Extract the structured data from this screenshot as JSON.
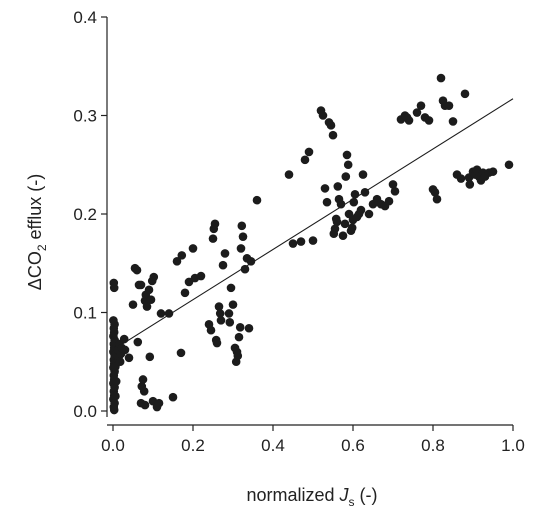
{
  "chart_data": {
    "type": "scatter",
    "title": "",
    "xlabel_parts": {
      "prefix": "normalized ",
      "italic": "J",
      "subscript": "s",
      "suffix": " (-)"
    },
    "ylabel_parts": {
      "prefix": "ΔCO",
      "subscript": "2",
      "suffix": " efflux (-)"
    },
    "xlim": [
      0.0,
      1.0
    ],
    "ylim": [
      0.0,
      0.4
    ],
    "xticks": [
      0.0,
      0.2,
      0.4,
      0.6,
      0.8,
      1.0
    ],
    "xtick_labels": [
      "0.0",
      "0.2",
      "0.4",
      "0.6",
      "0.8",
      "1.0"
    ],
    "yticks": [
      0.0,
      0.1,
      0.2,
      0.3,
      0.4
    ],
    "ytick_labels": [
      "0.0",
      "0.1",
      "0.2",
      "0.3",
      "0.4"
    ],
    "grid": false,
    "legend": "none",
    "marker_color": "#1c1c1c",
    "trendline": {
      "x": [
        0.0,
        1.0
      ],
      "y": [
        0.062,
        0.317
      ]
    },
    "points": [
      [
        0.002,
        0.13
      ],
      [
        0.003,
        0.125
      ],
      [
        0.001,
        0.092
      ],
      [
        0.004,
        0.088
      ],
      [
        0.002,
        0.084
      ],
      [
        0.003,
        0.08
      ],
      [
        0.001,
        0.076
      ],
      [
        0.004,
        0.072
      ],
      [
        0.002,
        0.068
      ],
      [
        0.003,
        0.064
      ],
      [
        0.001,
        0.06
      ],
      [
        0.004,
        0.056
      ],
      [
        0.002,
        0.052
      ],
      [
        0.003,
        0.048
      ],
      [
        0.001,
        0.044
      ],
      [
        0.004,
        0.04
      ],
      [
        0.002,
        0.036
      ],
      [
        0.003,
        0.032
      ],
      [
        0.001,
        0.028
      ],
      [
        0.004,
        0.024
      ],
      [
        0.002,
        0.02
      ],
      [
        0.003,
        0.016
      ],
      [
        0.001,
        0.012
      ],
      [
        0.004,
        0.008
      ],
      [
        0.002,
        0.004
      ],
      [
        0.003,
        0.001
      ],
      [
        0.006,
        0.07
      ],
      [
        0.007,
        0.058
      ],
      [
        0.006,
        0.045
      ],
      [
        0.008,
        0.03
      ],
      [
        0.006,
        0.015
      ],
      [
        0.012,
        0.062
      ],
      [
        0.014,
        0.054
      ],
      [
        0.016,
        0.068
      ],
      [
        0.02,
        0.058
      ],
      [
        0.018,
        0.05
      ],
      [
        0.022,
        0.064
      ],
      [
        0.028,
        0.073
      ],
      [
        0.03,
        0.062
      ],
      [
        0.04,
        0.054
      ],
      [
        0.05,
        0.108
      ],
      [
        0.055,
        0.145
      ],
      [
        0.06,
        0.143
      ],
      [
        0.062,
        0.07
      ],
      [
        0.065,
        0.128
      ],
      [
        0.07,
        0.128
      ],
      [
        0.072,
        0.025
      ],
      [
        0.075,
        0.032
      ],
      [
        0.078,
        0.02
      ],
      [
        0.08,
        0.112
      ],
      [
        0.082,
        0.118
      ],
      [
        0.085,
        0.106
      ],
      [
        0.09,
        0.123
      ],
      [
        0.092,
        0.055
      ],
      [
        0.095,
        0.113
      ],
      [
        0.098,
        0.132
      ],
      [
        0.102,
        0.136
      ],
      [
        0.07,
        0.008
      ],
      [
        0.08,
        0.006
      ],
      [
        0.1,
        0.01
      ],
      [
        0.11,
        0.004
      ],
      [
        0.115,
        0.008
      ],
      [
        0.12,
        0.099
      ],
      [
        0.14,
        0.099
      ],
      [
        0.15,
        0.014
      ],
      [
        0.16,
        0.152
      ],
      [
        0.17,
        0.059
      ],
      [
        0.172,
        0.158
      ],
      [
        0.18,
        0.12
      ],
      [
        0.19,
        0.131
      ],
      [
        0.2,
        0.165
      ],
      [
        0.205,
        0.135
      ],
      [
        0.22,
        0.137
      ],
      [
        0.24,
        0.088
      ],
      [
        0.245,
        0.082
      ],
      [
        0.25,
        0.175
      ],
      [
        0.252,
        0.185
      ],
      [
        0.255,
        0.19
      ],
      [
        0.258,
        0.072
      ],
      [
        0.26,
        0.069
      ],
      [
        0.265,
        0.106
      ],
      [
        0.268,
        0.099
      ],
      [
        0.27,
        0.092
      ],
      [
        0.275,
        0.148
      ],
      [
        0.28,
        0.16
      ],
      [
        0.29,
        0.099
      ],
      [
        0.292,
        0.09
      ],
      [
        0.295,
        0.125
      ],
      [
        0.3,
        0.108
      ],
      [
        0.305,
        0.064
      ],
      [
        0.308,
        0.05
      ],
      [
        0.31,
        0.06
      ],
      [
        0.312,
        0.056
      ],
      [
        0.315,
        0.075
      ],
      [
        0.318,
        0.085
      ],
      [
        0.32,
        0.165
      ],
      [
        0.322,
        0.188
      ],
      [
        0.325,
        0.177
      ],
      [
        0.33,
        0.144
      ],
      [
        0.335,
        0.155
      ],
      [
        0.34,
        0.084
      ],
      [
        0.345,
        0.152
      ],
      [
        0.36,
        0.214
      ],
      [
        0.44,
        0.24
      ],
      [
        0.45,
        0.17
      ],
      [
        0.47,
        0.172
      ],
      [
        0.48,
        0.255
      ],
      [
        0.49,
        0.263
      ],
      [
        0.5,
        0.173
      ],
      [
        0.52,
        0.305
      ],
      [
        0.525,
        0.3
      ],
      [
        0.53,
        0.226
      ],
      [
        0.535,
        0.212
      ],
      [
        0.54,
        0.293
      ],
      [
        0.545,
        0.29
      ],
      [
        0.55,
        0.28
      ],
      [
        0.552,
        0.18
      ],
      [
        0.555,
        0.185
      ],
      [
        0.558,
        0.195
      ],
      [
        0.56,
        0.192
      ],
      [
        0.562,
        0.228
      ],
      [
        0.565,
        0.215
      ],
      [
        0.57,
        0.21
      ],
      [
        0.575,
        0.178
      ],
      [
        0.58,
        0.19
      ],
      [
        0.582,
        0.238
      ],
      [
        0.585,
        0.26
      ],
      [
        0.588,
        0.25
      ],
      [
        0.59,
        0.2
      ],
      [
        0.595,
        0.183
      ],
      [
        0.598,
        0.186
      ],
      [
        0.6,
        0.194
      ],
      [
        0.602,
        0.212
      ],
      [
        0.605,
        0.22
      ],
      [
        0.61,
        0.197
      ],
      [
        0.615,
        0.2
      ],
      [
        0.62,
        0.204
      ],
      [
        0.625,
        0.24
      ],
      [
        0.63,
        0.222
      ],
      [
        0.64,
        0.2
      ],
      [
        0.65,
        0.21
      ],
      [
        0.66,
        0.215
      ],
      [
        0.67,
        0.21
      ],
      [
        0.68,
        0.208
      ],
      [
        0.69,
        0.213
      ],
      [
        0.7,
        0.23
      ],
      [
        0.705,
        0.223
      ],
      [
        0.72,
        0.296
      ],
      [
        0.73,
        0.3
      ],
      [
        0.735,
        0.298
      ],
      [
        0.74,
        0.295
      ],
      [
        0.76,
        0.303
      ],
      [
        0.77,
        0.31
      ],
      [
        0.78,
        0.298
      ],
      [
        0.79,
        0.295
      ],
      [
        0.8,
        0.225
      ],
      [
        0.805,
        0.222
      ],
      [
        0.81,
        0.215
      ],
      [
        0.82,
        0.338
      ],
      [
        0.825,
        0.315
      ],
      [
        0.83,
        0.31
      ],
      [
        0.84,
        0.31
      ],
      [
        0.85,
        0.294
      ],
      [
        0.86,
        0.24
      ],
      [
        0.87,
        0.236
      ],
      [
        0.88,
        0.322
      ],
      [
        0.89,
        0.237
      ],
      [
        0.892,
        0.23
      ],
      [
        0.9,
        0.243
      ],
      [
        0.905,
        0.24
      ],
      [
        0.91,
        0.245
      ],
      [
        0.915,
        0.238
      ],
      [
        0.92,
        0.234
      ],
      [
        0.925,
        0.242
      ],
      [
        0.93,
        0.238
      ],
      [
        0.94,
        0.242
      ],
      [
        0.95,
        0.243
      ],
      [
        0.99,
        0.25
      ]
    ]
  }
}
